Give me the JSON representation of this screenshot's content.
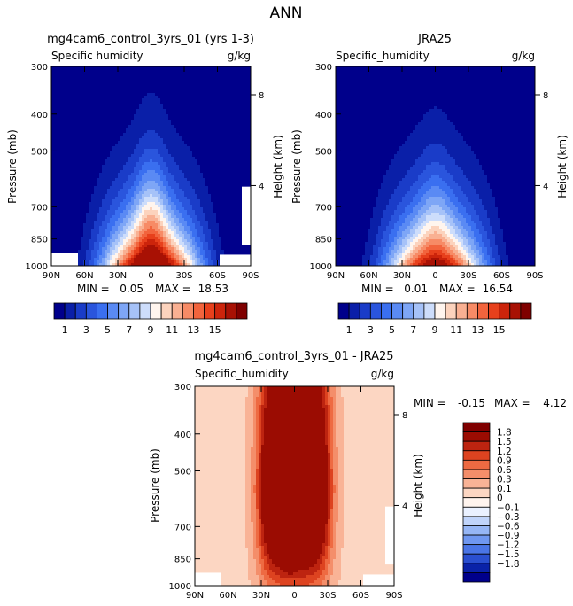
{
  "figure": {
    "title": "ANN",
    "colors": {
      "moist": [
        "#00008b",
        "#0a1fa8",
        "#1a3cc8",
        "#2a55dd",
        "#3a6ff0",
        "#5a8af4",
        "#7ea6f6",
        "#a6c2f8",
        "#cdddfb",
        "#fff5ee",
        "#fcd3bd",
        "#f9b092",
        "#f78b66",
        "#f2643d",
        "#e7401c",
        "#cc240b",
        "#a81104",
        "#7f0000"
      ],
      "diff": [
        "#00008b",
        "#0a22a8",
        "#2a4fd0",
        "#4a75e6",
        "#6f97f0",
        "#96b6f5",
        "#c0d4fa",
        "#eaf1ff",
        "#fff4ee",
        "#fcd6c2",
        "#f9b396",
        "#f48e6a",
        "#ee6a42",
        "#dd4320",
        "#bd2410",
        "#9b0c02",
        "#7f0000"
      ]
    }
  },
  "chart_data": [
    {
      "type": "heatmap",
      "id": "model",
      "title": "mg4cam6_control_3yrs_01 (yrs 1-3)",
      "variable": "Specific humidity",
      "units": "g/kg",
      "ylabel": "Pressure (mb)",
      "y2label": "Height (km)",
      "xticks": [
        "90N",
        "60N",
        "30N",
        "0",
        "30S",
        "60S",
        "90S"
      ],
      "xtick_lat": [
        90,
        60,
        30,
        0,
        -30,
        -60,
        -90
      ],
      "yticks": [
        "300",
        "400",
        "500",
        "700",
        "850",
        "1000"
      ],
      "ytick_p": [
        300,
        400,
        500,
        700,
        850,
        1000
      ],
      "y2ticks": [
        "8",
        "4"
      ],
      "y2tick_p": [
        356,
        616
      ],
      "ylim": [
        300,
        1000
      ],
      "xlim": [
        90,
        -90
      ],
      "min_label": "MIN =",
      "min_value": "0.05",
      "max_label": "MAX =",
      "max_value": "18.53",
      "levels": [
        1,
        2,
        3,
        4,
        5,
        6,
        7,
        8,
        9,
        10,
        11,
        12,
        13,
        14,
        15,
        16
      ],
      "surface_hump": 4,
      "missing_mask": true,
      "colorbar_labels": [
        "1",
        "3",
        "5",
        "7",
        "9",
        "11",
        "13",
        "15"
      ],
      "colorbar_label_idx": [
        0,
        2,
        4,
        6,
        8,
        10,
        12,
        14
      ]
    },
    {
      "type": "heatmap",
      "id": "obs",
      "title": "JRA25",
      "variable": "Specific_humidity",
      "units": "g/kg",
      "ylabel": "Pressure (mb)",
      "y2label": "Height (km)",
      "xticks": [
        "90N",
        "60N",
        "30N",
        "0",
        "30S",
        "60S",
        "90S"
      ],
      "xtick_lat": [
        90,
        60,
        30,
        0,
        -30,
        -60,
        -90
      ],
      "yticks": [
        "300",
        "400",
        "500",
        "700",
        "850",
        "1000"
      ],
      "ytick_p": [
        300,
        400,
        500,
        700,
        850,
        1000
      ],
      "y2ticks": [
        "8",
        "4"
      ],
      "y2tick_p": [
        356,
        616
      ],
      "ylim": [
        300,
        1000
      ],
      "xlim": [
        90,
        -90
      ],
      "min_label": "MIN =",
      "min_value": "0.01",
      "max_label": "MAX =",
      "max_value": "16.54",
      "levels": [
        1,
        2,
        3,
        4,
        5,
        6,
        7,
        8,
        9,
        10,
        11,
        12,
        13,
        14,
        15,
        16
      ],
      "surface_hump": 2,
      "missing_mask": false,
      "colorbar_labels": [
        "1",
        "3",
        "5",
        "7",
        "9",
        "11",
        "13",
        "15"
      ],
      "colorbar_label_idx": [
        0,
        2,
        4,
        6,
        8,
        10,
        12,
        14
      ]
    },
    {
      "type": "heatmap",
      "id": "diff",
      "title": "mg4cam6_control_3yrs_01 - JRA25",
      "variable": "Specific_humidity",
      "units": "g/kg",
      "ylabel": "Pressure (mb)",
      "y2label": "Height (km)",
      "xticks": [
        "90N",
        "60N",
        "30N",
        "0",
        "30S",
        "60S",
        "90S"
      ],
      "xtick_lat": [
        90,
        60,
        30,
        0,
        -30,
        -60,
        -90
      ],
      "yticks": [
        "300",
        "400",
        "500",
        "700",
        "850",
        "1000"
      ],
      "ytick_p": [
        300,
        400,
        500,
        700,
        850,
        1000
      ],
      "y2ticks": [
        "8",
        "4"
      ],
      "y2tick_p": [
        356,
        616
      ],
      "ylim": [
        300,
        1000
      ],
      "xlim": [
        90,
        -90
      ],
      "min_label": "MIN =",
      "min_value": "-0.15",
      "max_label": "MAX =",
      "max_value": "4.12",
      "levels": [
        -1.8,
        -1.5,
        -1.2,
        -0.9,
        -0.6,
        -0.3,
        -0.1,
        0,
        0.1,
        0.3,
        0.6,
        0.9,
        1.2,
        1.5,
        1.8
      ],
      "colorbar_labels": [
        "1.8",
        "1.5",
        "1.2",
        "0.9",
        "0.6",
        "0.3",
        "0.1",
        "0",
        "−0.1",
        "−0.3",
        "−0.6",
        "−0.9",
        "−1.2",
        "−1.5",
        "−1.8"
      ],
      "missing_mask": true
    }
  ]
}
